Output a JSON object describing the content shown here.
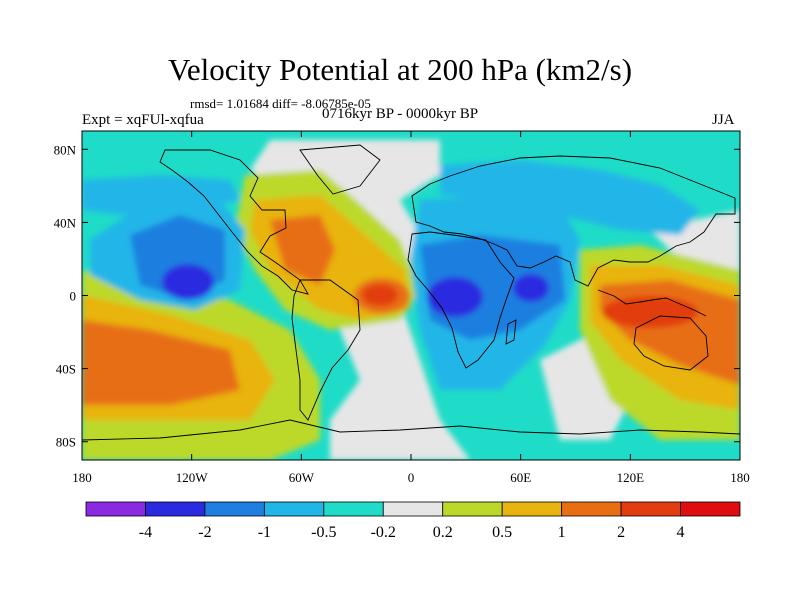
{
  "chart_data": {
    "type": "heatmap",
    "title": "Velocity Potential at 200 hPa (km2/s)",
    "stats_label": "rmsd= 1.01684 diff= -8.06785e-05",
    "experiment_label": "Expt = xqFUl-xqfua",
    "period_label": "0716kyr BP - 0000kyr BP",
    "season_label": "JJA",
    "projection": "cylindrical-equidistant",
    "xlim": [
      -180,
      180
    ],
    "ylim": [
      -90,
      90
    ],
    "x_ticks": [
      {
        "value": -180,
        "label": "180"
      },
      {
        "value": -120,
        "label": "120W"
      },
      {
        "value": -60,
        "label": "60W"
      },
      {
        "value": 0,
        "label": "0"
      },
      {
        "value": 60,
        "label": "60E"
      },
      {
        "value": 120,
        "label": "120E"
      },
      {
        "value": 180,
        "label": "180"
      }
    ],
    "y_ticks": [
      {
        "value": 80,
        "label": "80N"
      },
      {
        "value": 40,
        "label": "40N"
      },
      {
        "value": 0,
        "label": "0"
      },
      {
        "value": -40,
        "label": "40S"
      },
      {
        "value": -80,
        "label": "80S"
      }
    ],
    "contour_levels": [
      "-4",
      "-2",
      "-1",
      "-0.5",
      "-0.2",
      "0.2",
      "0.5",
      "1",
      "2",
      "4"
    ],
    "colorbar_colors": [
      "#8a2be2",
      "#2a2ae0",
      "#1e7fe0",
      "#22b6e8",
      "#1fdcc8",
      "#e6e6e6",
      "#bcd92a",
      "#e8b410",
      "#e86e14",
      "#e23c10",
      "#e00c10"
    ],
    "features": [
      {
        "name": "east-pacific-low",
        "lon": -120,
        "lat": 8,
        "value": -4
      },
      {
        "name": "africa-low",
        "lon": 25,
        "lat": 0,
        "value": -4
      },
      {
        "name": "indian-ocean-low",
        "lon": 65,
        "lat": 5,
        "value": -4
      },
      {
        "name": "caribbean-high",
        "lon": -65,
        "lat": 22,
        "value": 2
      },
      {
        "name": "equatorial-atlantic-high",
        "lon": -12,
        "lat": 0,
        "value": 4
      },
      {
        "name": "maritime-continent-high",
        "lon": 135,
        "lat": -10,
        "value": 4
      },
      {
        "name": "south-pacific-high",
        "lon": -150,
        "lat": -35,
        "value": 2
      }
    ]
  }
}
